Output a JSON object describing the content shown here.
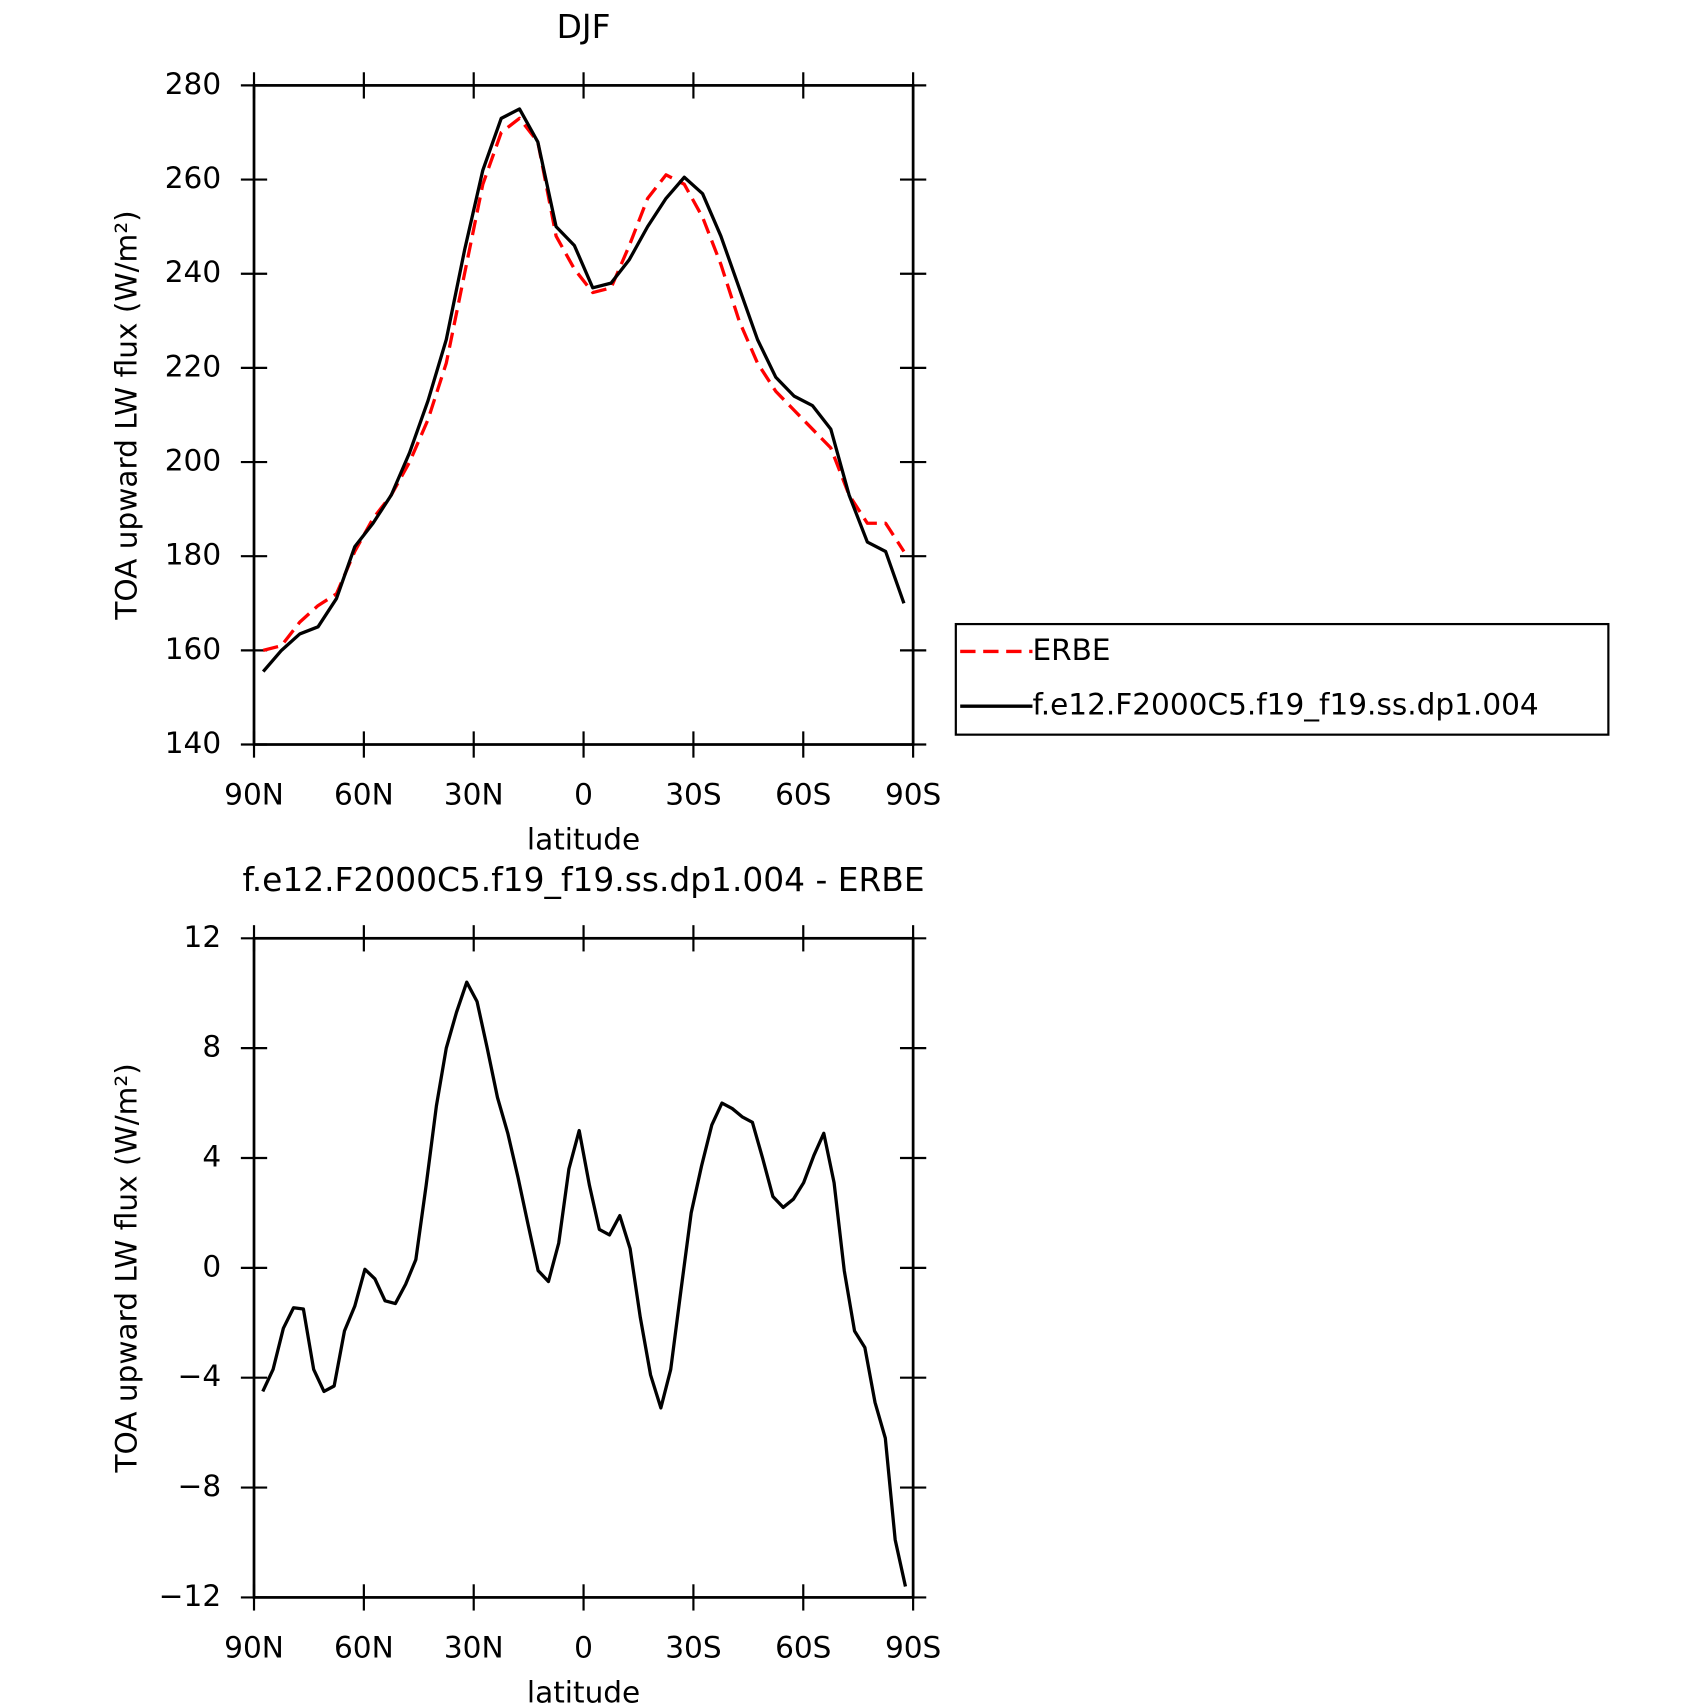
{
  "chart_data": [
    {
      "type": "line",
      "title": "DJF",
      "x_label": "latitude",
      "y_label": "TOA upward LW flux (W/m²)",
      "x": [
        87.5,
        82.5,
        77.5,
        72.5,
        67.5,
        62.5,
        57.5,
        52.5,
        47.5,
        42.5,
        37.5,
        32.5,
        27.5,
        22.5,
        17.5,
        12.5,
        7.5,
        2.5,
        -2.5,
        -7.5,
        -12.5,
        -17.5,
        -22.5,
        -27.5,
        -32.5,
        -37.5,
        -42.5,
        -47.5,
        -52.5,
        -57.5,
        -62.5,
        -67.5,
        -72.5,
        -77.5,
        -82.5,
        -87.5
      ],
      "xlim": [
        90,
        -90
      ],
      "xticks": [
        {
          "value": 90,
          "label": "90N"
        },
        {
          "value": 60,
          "label": "60N"
        },
        {
          "value": 30,
          "label": "30N"
        },
        0,
        {
          "value": -30,
          "label": "30S"
        },
        {
          "value": -60,
          "label": "60S"
        },
        {
          "value": -90,
          "label": "90S"
        }
      ],
      "ylim": [
        140,
        280
      ],
      "yticks": [
        140,
        160,
        180,
        200,
        220,
        240,
        260,
        280
      ],
      "legend": "right",
      "series": [
        {
          "name": "ERBE",
          "color": "#ff0000",
          "dash": "dashed",
          "values": [
            160,
            161,
            166,
            169.5,
            172,
            181,
            188,
            193,
            200,
            209,
            221,
            240,
            259,
            270,
            273,
            268,
            248,
            241,
            236,
            237,
            246,
            256,
            261,
            259,
            252,
            242,
            230,
            221,
            215,
            211,
            207,
            203,
            193,
            187,
            187,
            181
          ]
        },
        {
          "name": "f.e12.F2000C5.f19_f19.ss.dp1.004",
          "color": "#000000",
          "dash": "solid",
          "values": [
            155.5,
            160,
            163.5,
            165,
            171,
            182,
            187,
            193,
            202,
            213,
            226,
            245,
            262,
            273,
            275,
            268,
            250,
            246,
            237,
            238,
            243,
            250,
            256,
            260.5,
            257,
            248,
            237,
            226,
            218,
            214,
            212,
            207,
            193,
            183,
            181,
            170
          ]
        }
      ]
    },
    {
      "type": "line",
      "title": "f.e12.F2000C5.f19_f19.ss.dp1.004 - ERBE",
      "x_label": "latitude",
      "y_label": "TOA upward LW flux (W/m²)",
      "x": [
        87.6,
        84.8,
        82.0,
        79.2,
        76.5,
        73.7,
        70.9,
        68.1,
        65.3,
        62.5,
        59.7,
        57.0,
        54.2,
        51.4,
        48.6,
        45.8,
        43.0,
        40.2,
        37.5,
        34.7,
        31.9,
        29.1,
        26.3,
        23.5,
        20.7,
        17.9,
        15.2,
        12.4,
        9.6,
        6.8,
        4.0,
        1.2,
        -1.6,
        -4.3,
        -7.1,
        -9.9,
        -12.7,
        -15.5,
        -18.3,
        -21.1,
        -23.8,
        -26.6,
        -29.4,
        -32.2,
        -35.0,
        -37.8,
        -40.6,
        -43.3,
        -46.1,
        -48.9,
        -51.7,
        -54.5,
        -57.3,
        -60.1,
        -62.9,
        -65.6,
        -68.4,
        -71.2,
        -74.0,
        -76.8,
        -79.6,
        -82.4,
        -85.1,
        -87.9
      ],
      "xlim": [
        90,
        -90
      ],
      "xticks": [
        {
          "value": 90,
          "label": "90N"
        },
        {
          "value": 60,
          "label": "60N"
        },
        {
          "value": 30,
          "label": "30N"
        },
        0,
        {
          "value": -30,
          "label": "30S"
        },
        {
          "value": -60,
          "label": "60S"
        },
        {
          "value": -90,
          "label": "90S"
        }
      ],
      "ylim": [
        -12,
        12
      ],
      "yticks": [
        {
          "value": -12,
          "label": "−12"
        },
        {
          "value": -8,
          "label": "−8"
        },
        {
          "value": -4,
          "label": "−4"
        },
        0,
        4,
        8,
        12
      ],
      "color": "#000000",
      "values": [
        -4.5,
        -3.7,
        -2.2,
        -1.45,
        -1.5,
        -3.7,
        -4.5,
        -4.3,
        -2.3,
        -1.4,
        -0.05,
        -0.4,
        -1.2,
        -1.3,
        -0.6,
        0.3,
        3,
        5.9,
        8,
        9.3,
        10.4,
        9.7,
        8,
        6.2,
        4.9,
        3.3,
        1.6,
        -0.1,
        -0.5,
        0.9,
        3.6,
        5,
        3,
        1.4,
        1.2,
        1.9,
        0.7,
        -1.8,
        -3.9,
        -5.1,
        -3.7,
        -0.8,
        2,
        3.7,
        5.2,
        6,
        5.8,
        5.5,
        5.3,
        4,
        2.6,
        2.2,
        2.5,
        3.1,
        4.1,
        4.9,
        3.1,
        -0.1,
        -2.3,
        -2.9,
        -4.9,
        -6.2,
        -9.9,
        -11.6
      ]
    }
  ]
}
